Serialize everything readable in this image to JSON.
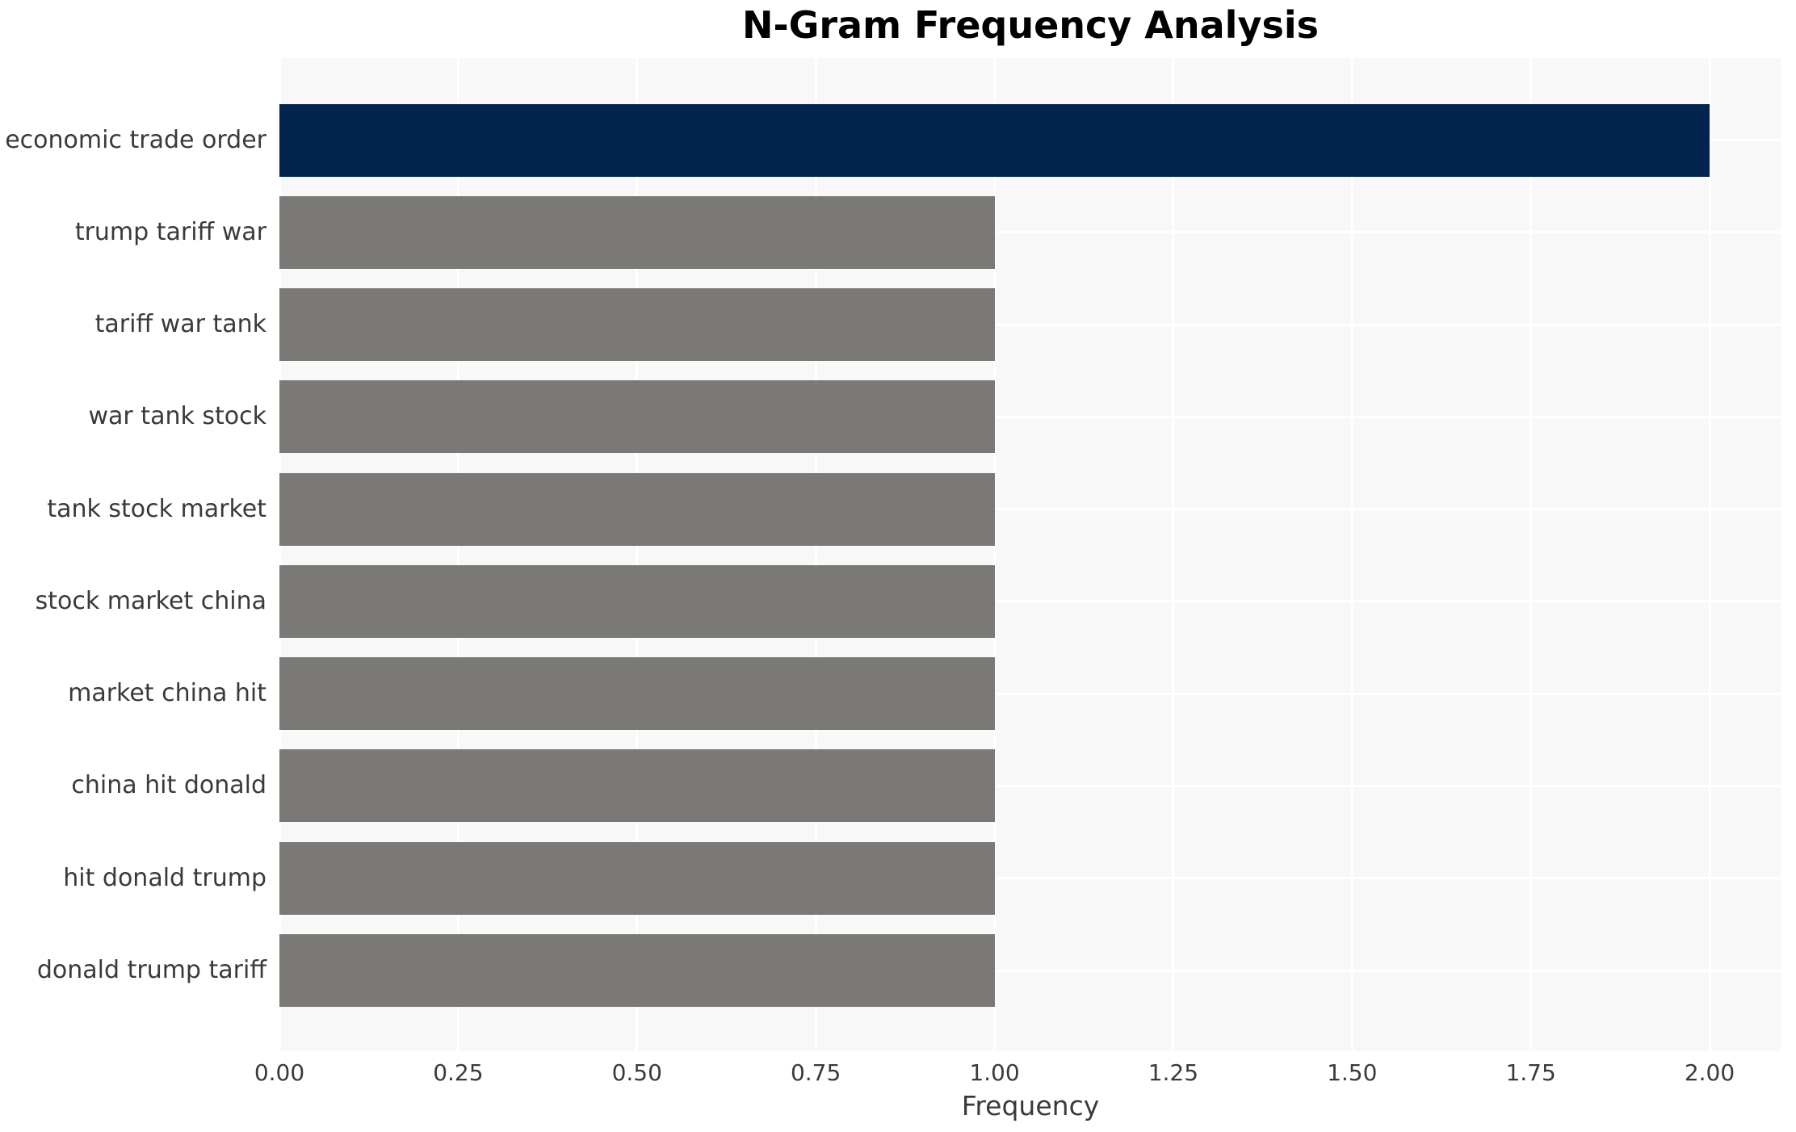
{
  "chart_data": {
    "type": "bar",
    "orientation": "horizontal",
    "title": "N-Gram Frequency Analysis",
    "xlabel": "Frequency",
    "ylabel": "",
    "categories": [
      "economic trade order",
      "trump tariff war",
      "tariff war tank",
      "war tank stock",
      "tank stock market",
      "stock market china",
      "market china hit",
      "china hit donald",
      "hit donald trump",
      "donald trump tariff"
    ],
    "values": [
      2.0,
      1.0,
      1.0,
      1.0,
      1.0,
      1.0,
      1.0,
      1.0,
      1.0,
      1.0
    ],
    "bar_colors": [
      "#02244e",
      "#7b7975",
      "#7b7975",
      "#7b7975",
      "#7b7975",
      "#7b7975",
      "#7b7975",
      "#7b7975",
      "#7b7975",
      "#7b7975"
    ],
    "xlim": [
      0,
      2.0
    ],
    "xtick_labels": [
      "0.00",
      "0.25",
      "0.50",
      "0.75",
      "1.00",
      "1.25",
      "1.50",
      "1.75",
      "2.00"
    ],
    "grid": true,
    "legend": false,
    "colors": {
      "highlight_bar": "#02244e",
      "default_bar": "#7b7975",
      "plot_background": "#f8f8f8",
      "gridline": "#ffffff",
      "page_background": "#ffffff",
      "tick_text": "#3a3a3a",
      "title_text": "#000000"
    }
  }
}
